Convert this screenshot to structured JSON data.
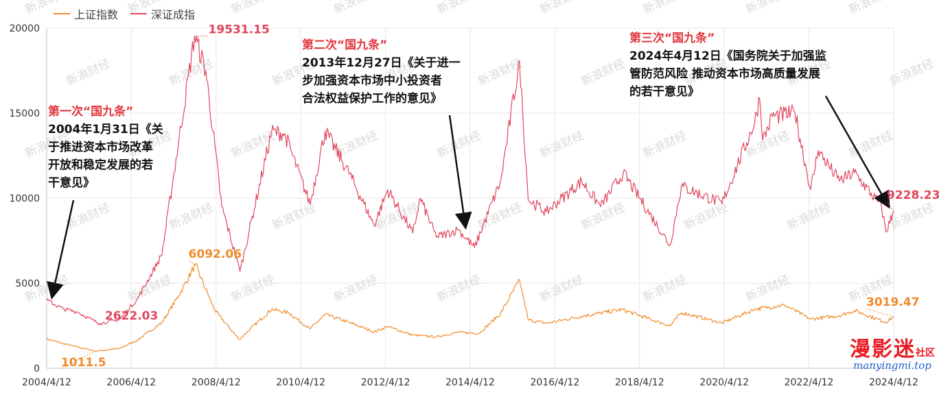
{
  "legend": [
    {
      "name": "上证指数",
      "color": "#f08a2a"
    },
    {
      "name": "深证成指",
      "color": "#e0465c"
    }
  ],
  "annotations": [
    {
      "title": "第一次“国九条”",
      "body": [
        "2004年1月31日《关",
        "于推进资本市场改革",
        "开放和稳定发展的若",
        "干意见》"
      ]
    },
    {
      "title": "第二次“国九条”",
      "body": [
        "2013年12月27日《关于进一",
        "步加强资本市场中小投资者",
        "合法权益保护工作的意见》"
      ]
    },
    {
      "title": "第三次“国九条”",
      "body": [
        "2024年4月12日《国务院关于加强监",
        "管防范风险 推动资本市场高质量发展",
        "的若干意见》"
      ]
    }
  ],
  "watermark": {
    "main": "漫影迷",
    "suffix": "社区",
    "url": "manyingmi.top",
    "repeat": "新浪财经"
  },
  "chart_data": {
    "type": "line",
    "x_ticks": [
      "2004/4/12",
      "2006/4/12",
      "2008/4/12",
      "2010/4/12",
      "2012/4/12",
      "2014/4/12",
      "2016/4/12",
      "2018/4/12",
      "2020/4/12",
      "2022/4/12",
      "2024/4/12"
    ],
    "y_ticks": [
      0,
      5000,
      10000,
      15000,
      20000
    ],
    "ylim": [
      0,
      20000
    ],
    "xlim": [
      "2004/4/12",
      "2024/4/12"
    ],
    "grid": true,
    "legend_position": "top-left",
    "series": [
      {
        "name": "上证指数",
        "color": "#f08a2a",
        "points": [
          [
            "2004-04-12",
            1720
          ],
          [
            "2004-09-01",
            1450
          ],
          [
            "2005-01-01",
            1250
          ],
          [
            "2005-06-06",
            1011.5
          ],
          [
            "2005-12-31",
            1160
          ],
          [
            "2006-06-01",
            1650
          ],
          [
            "2006-12-31",
            2680
          ],
          [
            "2007-05-29",
            4300
          ],
          [
            "2007-10-16",
            6092.06
          ],
          [
            "2008-04-01",
            3400
          ],
          [
            "2008-10-28",
            1700
          ],
          [
            "2009-08-04",
            3470
          ],
          [
            "2010-01-01",
            3250
          ],
          [
            "2010-07-02",
            2320
          ],
          [
            "2010-11-08",
            3160
          ],
          [
            "2011-06-01",
            2700
          ],
          [
            "2012-01-06",
            2140
          ],
          [
            "2012-05-01",
            2450
          ],
          [
            "2012-12-03",
            1950
          ],
          [
            "2013-06-25",
            1850
          ],
          [
            "2013-12-31",
            2115
          ],
          [
            "2014-06-30",
            2050
          ],
          [
            "2014-12-31",
            3230
          ],
          [
            "2015-06-12",
            5180
          ],
          [
            "2015-08-26",
            2850
          ],
          [
            "2016-01-28",
            2640
          ],
          [
            "2016-12-31",
            3100
          ],
          [
            "2017-11-13",
            3450
          ],
          [
            "2018-12-31",
            2490
          ],
          [
            "2019-04-08",
            3280
          ],
          [
            "2020-03-23",
            2660
          ],
          [
            "2020-12-31",
            3470
          ],
          [
            "2021-09-13",
            3720
          ],
          [
            "2022-04-26",
            2890
          ],
          [
            "2022-12-31",
            3090
          ],
          [
            "2023-05-09",
            3400
          ],
          [
            "2024-02-05",
            2700
          ],
          [
            "2024-04-12",
            3019.47
          ]
        ]
      },
      {
        "name": "深证成指",
        "color": "#e0465c",
        "points": [
          [
            "2004-04-12",
            4000
          ],
          [
            "2004-09-01",
            3500
          ],
          [
            "2005-01-01",
            3300
          ],
          [
            "2005-07-11",
            2622.03
          ],
          [
            "2005-12-31",
            2860
          ],
          [
            "2006-06-01",
            4050
          ],
          [
            "2006-12-31",
            6650
          ],
          [
            "2007-05-29",
            13500
          ],
          [
            "2007-10-10",
            19531.15
          ],
          [
            "2008-01-14",
            17500
          ],
          [
            "2008-06-01",
            9500
          ],
          [
            "2008-11-04",
            5700
          ],
          [
            "2009-08-04",
            13900
          ],
          [
            "2009-11-24",
            13800
          ],
          [
            "2010-07-02",
            9650
          ],
          [
            "2010-11-08",
            13950
          ],
          [
            "2011-06-01",
            11500
          ],
          [
            "2012-01-06",
            8400
          ],
          [
            "2012-05-01",
            10500
          ],
          [
            "2012-12-03",
            7950
          ],
          [
            "2013-02-06",
            10000
          ],
          [
            "2013-06-25",
            7700
          ],
          [
            "2013-12-31",
            8150
          ],
          [
            "2014-05-20",
            7100
          ],
          [
            "2014-12-31",
            11000
          ],
          [
            "2015-06-12",
            18100
          ],
          [
            "2015-08-26",
            9900
          ],
          [
            "2016-01-28",
            9200
          ],
          [
            "2016-11-29",
            11000
          ],
          [
            "2017-05-11",
            9500
          ],
          [
            "2017-11-22",
            11500
          ],
          [
            "2018-12-31",
            7240
          ],
          [
            "2019-04-08",
            10700
          ],
          [
            "2020-03-23",
            9700
          ],
          [
            "2020-12-31",
            14470
          ],
          [
            "2021-02-10",
            15900
          ],
          [
            "2021-03-09",
            13400
          ],
          [
            "2021-06-01",
            14800
          ],
          [
            "2021-12-13",
            15000
          ],
          [
            "2022-04-26",
            10500
          ],
          [
            "2022-07-01",
            12800
          ],
          [
            "2022-12-31",
            11000
          ],
          [
            "2023-05-09",
            11500
          ],
          [
            "2023-12-29",
            9500
          ],
          [
            "2024-02-05",
            8000
          ],
          [
            "2024-04-12",
            9228.23
          ]
        ]
      }
    ],
    "labels": [
      {
        "series": 1,
        "text": "19531.15"
      },
      {
        "series": 0,
        "text": "6092.06"
      },
      {
        "series": 1,
        "text": "2622.03"
      },
      {
        "series": 0,
        "text": "1011.5"
      },
      {
        "series": 1,
        "text": "9228.23"
      },
      {
        "series": 0,
        "text": "3019.47"
      }
    ]
  }
}
